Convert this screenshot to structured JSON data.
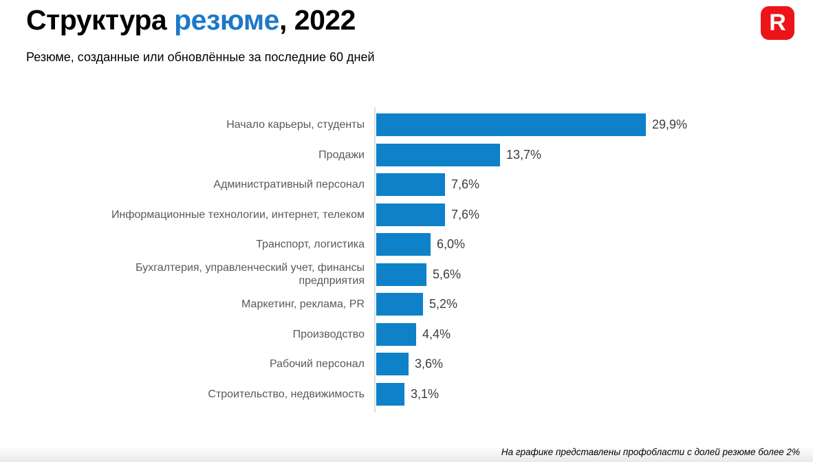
{
  "page": {
    "title_part1": "Структура",
    "title_accent": "резюме",
    "title_part2": ", 2022",
    "subtitle": "Резюме, созданные или обновлённые за последние 60 дней",
    "footnote": "На графике представлены профобласти с долей резюме более 2%",
    "logo_letter": "R"
  },
  "colors": {
    "accent_blue": "#1d78c8",
    "bar_blue": "#0e81c9",
    "logo_red": "#ec1418",
    "label_gray": "#595959",
    "value_gray": "#3d3d3d",
    "axis_gray": "#dcdcdc"
  },
  "chart_data": {
    "type": "bar",
    "orientation": "horizontal",
    "title": "Структура резюме, 2022",
    "subtitle": "Резюме, созданные или обновлённые за последние 60 дней",
    "footnote": "На графике представлены профобласти с долей резюме более 2%",
    "categories": [
      "Начало карьеры, студенты",
      "Продажи",
      "Административный персонал",
      "Информационные технологии, интернет, телеком",
      "Транспорт, логистика",
      "Бухгалтерия, управленческий учет, финансы предприятия",
      "Маркетинг, реклама, PR",
      "Производство",
      "Рабочий персонал",
      "Строительство, недвижимость"
    ],
    "values": [
      29.9,
      13.7,
      7.6,
      7.6,
      6.0,
      5.6,
      5.2,
      4.4,
      3.6,
      3.1
    ],
    "value_labels": [
      "29,9%",
      "13,7%",
      "7,6%",
      "7,6%",
      "6,0%",
      "5,6%",
      "5,2%",
      "4,4%",
      "3,6%",
      "3,1%"
    ],
    "xlabel": "",
    "ylabel": "",
    "xlim": [
      0,
      30
    ],
    "grid": false,
    "legend": "none",
    "bar_color": "#0e81c9"
  }
}
